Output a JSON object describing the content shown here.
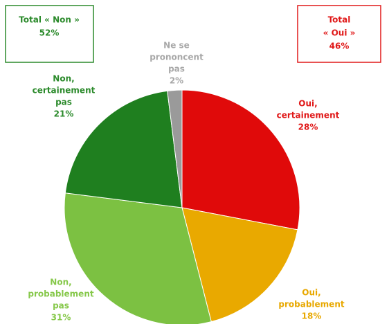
{
  "chart_data": {
    "type": "pie",
    "categories": [
      [
        "Oui,",
        "certainement"
      ],
      [
        "Oui,",
        "probablement"
      ],
      [
        "Non,",
        "probablement",
        "pas"
      ],
      [
        "Non,",
        "certainement",
        "pas"
      ],
      [
        "Ne se",
        "prononcent",
        "pas"
      ]
    ],
    "values": [
      28,
      18,
      31,
      21,
      2
    ],
    "value_labels": [
      "28%",
      "18%",
      "31%",
      "21%",
      "2%"
    ],
    "colors": [
      "#e00a0a",
      "#e9a900",
      "#7cc142",
      "#1f7f1f",
      "#9a9a9a"
    ],
    "label_colors": [
      "#e01818",
      "#e8a800",
      "#86c84a",
      "#2b8a2b",
      "#a8a8a8"
    ],
    "annotations": [
      {
        "lines": [
          "Total « Non »",
          "52%"
        ],
        "color": "#2b8a2b"
      },
      {
        "lines": [
          "Total",
          "« Oui »",
          "46%"
        ],
        "color": "#e01818"
      }
    ]
  }
}
